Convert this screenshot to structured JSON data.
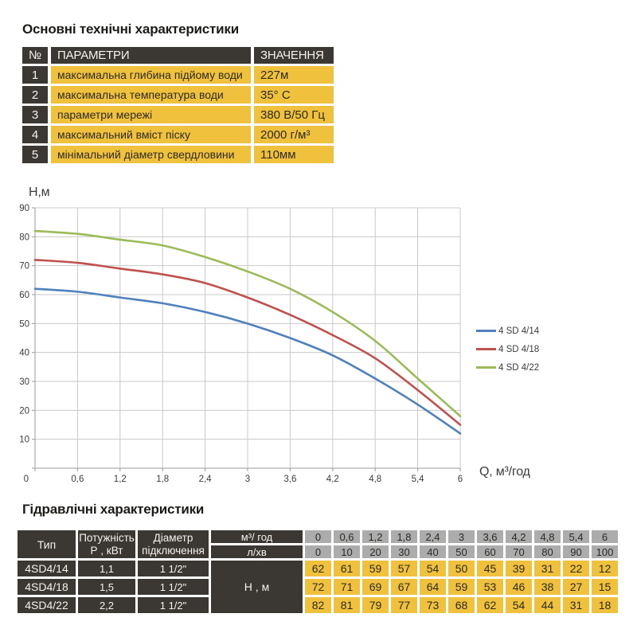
{
  "tech_table": {
    "title": "Основні технічні характеристики",
    "headers": {
      "num": "№",
      "param": "ПАРАМЕТРИ",
      "value": "ЗНАЧЕННЯ"
    },
    "rows": [
      {
        "num": "1",
        "param": "максимальна глибина підйому води",
        "value": "227м"
      },
      {
        "num": "2",
        "param": "максимальна температура води",
        "value": "35° С"
      },
      {
        "num": "3",
        "param": "параметри мережі",
        "value": "380 В/50 Гц"
      },
      {
        "num": "4",
        "param": "максимальний вміст піску",
        "value": "2000 г/м³"
      },
      {
        "num": "5",
        "param": "мінімальний діаметр свердловини",
        "value": "110мм"
      }
    ]
  },
  "chart_data": {
    "type": "line",
    "title": "",
    "xlabel": "Q,  м³/год",
    "ylabel": "Н,м",
    "x": [
      0,
      0.6,
      1.2,
      1.8,
      2.4,
      3,
      3.6,
      4.2,
      4.8,
      5.4,
      6
    ],
    "x_tick_labels": [
      "0",
      "0,6",
      "1,2",
      "1,8",
      "2,4",
      "3",
      "3,6",
      "4,2",
      "4,8",
      "5,4",
      "6"
    ],
    "y_ticks": [
      0,
      10,
      20,
      30,
      40,
      50,
      60,
      70,
      80,
      90
    ],
    "xlim": [
      0,
      6
    ],
    "ylim": [
      0,
      90
    ],
    "grid": true,
    "legend_position": "right",
    "series": [
      {
        "name": "4 SD 4/14",
        "color": "#4f81bd",
        "values": [
          62,
          61,
          59,
          57,
          54,
          50,
          45,
          39,
          31,
          22,
          12
        ]
      },
      {
        "name": "4 SD 4/18",
        "color": "#c0504d",
        "values": [
          72,
          71,
          69,
          67,
          64,
          59,
          53,
          46,
          38,
          27,
          15
        ]
      },
      {
        "name": "4 SD 4/22",
        "color": "#9bbb59",
        "values": [
          82,
          81,
          79,
          77,
          73,
          68,
          62,
          54,
          44,
          31,
          18
        ]
      }
    ]
  },
  "hydraulic_table": {
    "title": "Гідравлічні характеристики",
    "col_headers": {
      "type": "Тип",
      "power_l1": "Потужність",
      "power_l2": "Р , кВт",
      "diameter_l1": "Діаметр",
      "diameter_l2": "підключення",
      "flow_m3": "м³/ год",
      "flow_lmin": "л/хв",
      "head": "Н , м"
    },
    "flow_m3_values": [
      "0",
      "0,6",
      "1,2",
      "1,8",
      "2,4",
      "3",
      "3,6",
      "4,2",
      "4,8",
      "5,4",
      "6"
    ],
    "flow_lmin_values": [
      "0",
      "10",
      "20",
      "30",
      "40",
      "50",
      "60",
      "70",
      "80",
      "90",
      "100"
    ],
    "rows": [
      {
        "type": "4SD4/14",
        "power": "1,1",
        "diameter": "1 1/2\"",
        "heads": [
          "62",
          "61",
          "59",
          "57",
          "54",
          "50",
          "45",
          "39",
          "31",
          "22",
          "12"
        ]
      },
      {
        "type": "4SD4/18",
        "power": "1,5",
        "diameter": "1 1/2\"",
        "heads": [
          "72",
          "71",
          "69",
          "67",
          "64",
          "59",
          "53",
          "46",
          "38",
          "27",
          "15"
        ]
      },
      {
        "type": "4SD4/22",
        "power": "2,2",
        "diameter": "1 1/2\"",
        "heads": [
          "82",
          "81",
          "79",
          "77",
          "73",
          "68",
          "62",
          "54",
          "44",
          "31",
          "18"
        ]
      }
    ]
  },
  "colors": {
    "dark_cell": "#3b3733",
    "yellow_cell": "#efc13c",
    "gray_cell": "#acacac",
    "grid": "#c9c9c9",
    "axis": "#9b9b9b",
    "tick_text": "#3c3c3c"
  }
}
